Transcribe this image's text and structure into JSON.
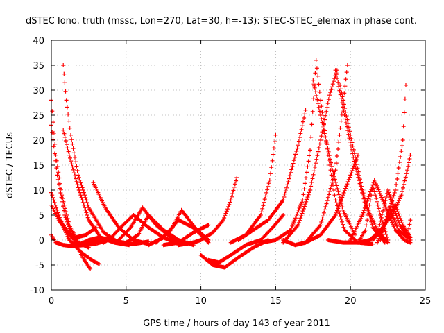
{
  "chart_data": {
    "type": "scatter",
    "title": "dSTEC Iono. truth (mssc, Lon=270, Lat=30, h=-13): STEC-STEC_elemax in phase cont.",
    "xlabel": "GPS time / hours of day 143 of year 2011",
    "ylabel": "dSTEC  / TECUs",
    "xlim": [
      0,
      25
    ],
    "ylim": [
      -10,
      40
    ],
    "xticks": [
      0,
      5,
      10,
      15,
      20,
      25
    ],
    "yticks": [
      -10,
      -5,
      0,
      5,
      10,
      15,
      20,
      25,
      30,
      35,
      40
    ],
    "grid": true,
    "marker": "plus",
    "color": "#ff0000",
    "series": [
      {
        "x": [
          0.0,
          0.3,
          0.7,
          1.2,
          1.8,
          2.5
        ],
        "y": [
          28.0,
          17.0,
          9.0,
          3.0,
          -0.5,
          -1.5
        ]
      },
      {
        "x": [
          0.0,
          0.4,
          0.9,
          1.5,
          2.1,
          2.6
        ],
        "y": [
          23.0,
          13.0,
          5.0,
          0.0,
          -3.5,
          -5.8
        ]
      },
      {
        "x": [
          0.0,
          0.6,
          1.2,
          2.0,
          2.8,
          3.2
        ],
        "y": [
          9.5,
          4.0,
          0.0,
          -2.5,
          -4.2,
          -4.8
        ]
      },
      {
        "x": [
          0.0,
          0.3,
          0.8,
          1.4,
          2.2,
          3.0,
          4.0
        ],
        "y": [
          1.0,
          -0.5,
          -1.0,
          -1.2,
          -1.0,
          -0.3,
          0.2
        ]
      },
      {
        "x": [
          0.0,
          0.5,
          1.2,
          2.0,
          2.9,
          3.8
        ],
        "y": [
          7.0,
          4.0,
          1.0,
          -1.0,
          -0.8,
          0.0
        ]
      },
      {
        "x": [
          0.8,
          1.0,
          1.3,
          1.8,
          2.5,
          3.5,
          4.5,
          5.5,
          6.5
        ],
        "y": [
          35.0,
          28.0,
          21.0,
          13.0,
          6.5,
          1.5,
          -0.5,
          -0.8,
          -0.3
        ]
      },
      {
        "x": [
          0.8,
          1.2,
          1.8,
          2.5,
          3.3,
          4.2,
          5.2
        ],
        "y": [
          22.0,
          17.0,
          10.5,
          4.0,
          0.5,
          -0.5,
          -1.0
        ]
      },
      {
        "x": [
          0.5,
          1.0,
          1.6,
          2.3,
          3.0
        ],
        "y": [
          4.5,
          2.0,
          0.5,
          1.0,
          2.5
        ]
      },
      {
        "x": [
          1.8,
          2.5,
          3.2,
          4.0,
          4.8,
          5.5
        ],
        "y": [
          -1.0,
          0.0,
          0.5,
          0.0,
          -0.5,
          -0.8
        ]
      },
      {
        "x": [
          2.8,
          3.6,
          4.5,
          5.5,
          6.5
        ],
        "y": [
          11.5,
          6.5,
          2.5,
          0.0,
          -0.8
        ]
      },
      {
        "x": [
          3.5,
          4.0,
          4.8,
          5.5,
          6.5,
          7.5,
          8.3
        ],
        "y": [
          -0.5,
          0.5,
          3.0,
          5.0,
          2.5,
          0.5,
          -0.5
        ]
      },
      {
        "x": [
          4.5,
          5.3,
          6.1,
          7.0,
          8.0,
          9.0
        ],
        "y": [
          0.0,
          2.5,
          6.5,
          3.0,
          0.5,
          -0.7
        ]
      },
      {
        "x": [
          5.0,
          5.8,
          6.5,
          7.5,
          8.5,
          9.5
        ],
        "y": [
          -0.5,
          1.0,
          5.0,
          2.0,
          0.0,
          -1.0
        ]
      },
      {
        "x": [
          6.5,
          7.5,
          8.5,
          9.5,
          10.5
        ],
        "y": [
          -1.0,
          0.5,
          4.0,
          2.5,
          -0.5
        ]
      },
      {
        "x": [
          7.0,
          8.0,
          8.7,
          9.6,
          10.5
        ],
        "y": [
          -0.5,
          2.0,
          6.0,
          2.5,
          0.0
        ]
      },
      {
        "x": [
          7.5,
          8.5,
          9.5,
          10.5
        ],
        "y": [
          -1.0,
          -0.5,
          1.5,
          3.0
        ]
      },
      {
        "x": [
          8.5,
          9.5,
          10.0,
          10.8,
          11.5,
          12.0,
          12.4
        ],
        "y": [
          -1.0,
          -0.5,
          0.0,
          1.5,
          4.0,
          8.0,
          12.5
        ]
      },
      {
        "x": [
          10.0,
          10.8,
          11.6,
          12.5,
          13.5,
          14.5
        ],
        "y": [
          -3.0,
          -5.0,
          -5.5,
          -3.5,
          -1.5,
          0.0
        ]
      },
      {
        "x": [
          10.5,
          11.2,
          12.0,
          13.0,
          14.0,
          14.8,
          15.5
        ],
        "y": [
          -4.0,
          -4.5,
          -3.0,
          -1.0,
          0.0,
          2.5,
          5.0
        ]
      },
      {
        "x": [
          12.0,
          13.0,
          14.0,
          14.6,
          15.0
        ],
        "y": [
          -0.5,
          1.0,
          5.0,
          12.0,
          21.0
        ]
      },
      {
        "x": [
          12.5,
          13.5,
          14.5,
          15.5,
          16.5,
          17.0
        ],
        "y": [
          0.0,
          2.0,
          4.0,
          8.0,
          19.0,
          26.0
        ]
      },
      {
        "x": [
          14.0,
          15.0,
          16.0,
          16.8,
          17.3,
          17.7
        ],
        "y": [
          -0.5,
          0.0,
          2.0,
          8.0,
          18.0,
          36.0
        ]
      },
      {
        "x": [
          15.5,
          16.5,
          17.3,
          18.0,
          18.6,
          19.1
        ],
        "y": [
          -0.5,
          3.0,
          10.0,
          20.0,
          29.0,
          34.0
        ]
      },
      {
        "x": [
          17.7,
          18.0,
          18.5,
          19.0,
          19.6,
          20.5,
          21.5
        ],
        "y": [
          36.0,
          28.0,
          17.0,
          8.0,
          2.0,
          -0.5,
          -0.8
        ]
      },
      {
        "x": [
          17.5,
          18.0,
          18.8,
          19.5,
          20.3
        ],
        "y": [
          32.0,
          25.0,
          14.0,
          6.0,
          1.0
        ]
      },
      {
        "x": [
          15.5,
          16.3,
          17.0,
          18.0,
          19.0,
          19.8
        ],
        "y": [
          0.0,
          -1.0,
          -0.5,
          3.0,
          14.0,
          35.0
        ]
      },
      {
        "x": [
          19.0,
          19.6,
          20.3,
          21.0,
          21.8,
          22.5
        ],
        "y": [
          34.0,
          25.0,
          15.0,
          7.0,
          2.0,
          -0.5
        ]
      },
      {
        "x": [
          19.3,
          20.0,
          20.8,
          21.5,
          22.3
        ],
        "y": [
          31.0,
          21.0,
          10.0,
          2.5,
          -0.5
        ]
      },
      {
        "x": [
          17.0,
          18.0,
          19.0,
          20.0,
          20.5
        ],
        "y": [
          -0.5,
          1.0,
          5.0,
          13.0,
          17.0
        ]
      },
      {
        "x": [
          18.5,
          19.5,
          20.5,
          21.0,
          21.5,
          22.0,
          22.5
        ],
        "y": [
          0.0,
          -0.5,
          -0.5,
          2.0,
          11.0,
          5.0,
          0.0
        ]
      },
      {
        "x": [
          20.0,
          20.8,
          21.6,
          22.3,
          23.0,
          23.6,
          24.0
        ],
        "y": [
          0.0,
          5.0,
          12.0,
          7.0,
          2.0,
          0.0,
          -0.5
        ]
      },
      {
        "x": [
          20.5,
          21.3,
          22.0,
          22.8,
          23.4,
          23.8,
          24.0
        ],
        "y": [
          -0.5,
          0.0,
          2.0,
          5.0,
          9.0,
          14.0,
          17.0
        ]
      },
      {
        "x": [
          21.5,
          22.3,
          23.0,
          23.5,
          23.7
        ],
        "y": [
          0.0,
          3.0,
          10.0,
          20.0,
          31.0
        ]
      },
      {
        "x": [
          21.0,
          21.8,
          22.5,
          23.3,
          24.0
        ],
        "y": [
          -0.5,
          1.0,
          10.0,
          3.0,
          0.0
        ]
      },
      {
        "x": [
          22.0,
          22.6,
          23.2,
          23.8,
          24.0
        ],
        "y": [
          0.0,
          6.5,
          2.0,
          0.5,
          4.0
        ]
      },
      {
        "x": [
          21.8,
          22.4,
          23.0,
          23.5,
          24.0
        ],
        "y": [
          -0.5,
          4.0,
          7.0,
          3.0,
          0.5
        ]
      }
    ]
  }
}
